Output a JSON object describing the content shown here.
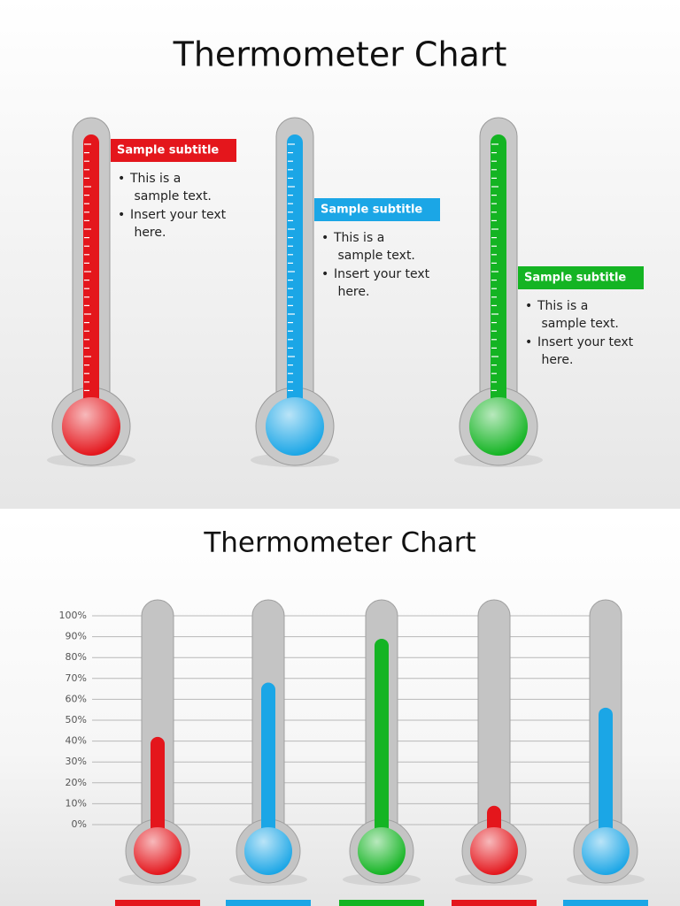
{
  "slide1": {
    "title": "Thermometer Chart",
    "items": [
      {
        "subtitle": "Sample subtitle",
        "bullets": [
          "This is a sample text.",
          "Insert your text here."
        ]
      },
      {
        "subtitle": "Sample subtitle",
        "bullets": [
          "This is a sample text.",
          "Insert your text here."
        ]
      },
      {
        "subtitle": "Sample subtitle",
        "bullets": [
          "This is a sample text.",
          "Insert your text here."
        ]
      }
    ],
    "colors": [
      "#e4161c",
      "#1ba6e6",
      "#14b423"
    ]
  },
  "chart_data": {
    "type": "bar",
    "title": "Thermometer Chart",
    "categories": [
      null,
      null,
      null,
      null,
      null
    ],
    "values": [
      42,
      68,
      89,
      9,
      56
    ],
    "colors": [
      "#e4161c",
      "#1ba6e6",
      "#14b423",
      "#e4161c",
      "#1ba6e6"
    ],
    "ylim": [
      0,
      100
    ],
    "yticks": [
      {
        "value": 0,
        "label": "0%"
      },
      {
        "value": 10,
        "label": "10%"
      },
      {
        "value": 20,
        "label": "20%"
      },
      {
        "value": 30,
        "label": "30%"
      },
      {
        "value": 40,
        "label": "40%"
      },
      {
        "value": 50,
        "label": "50%"
      },
      {
        "value": 60,
        "label": "60%"
      },
      {
        "value": 70,
        "label": "70%"
      },
      {
        "value": 80,
        "label": "80%"
      },
      {
        "value": 90,
        "label": "90%"
      },
      {
        "value": 100,
        "label": "100%"
      }
    ],
    "grid": true
  }
}
